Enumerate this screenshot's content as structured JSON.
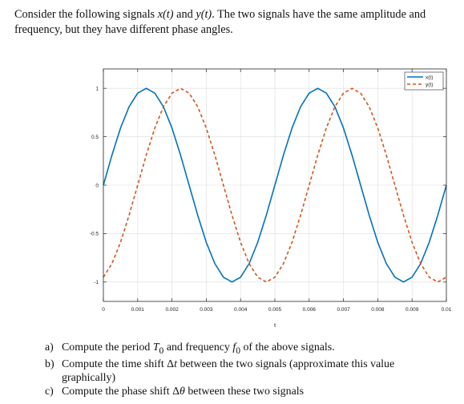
{
  "intro": {
    "part1": "Consider the following signals ",
    "x_sym": "x(t)",
    "part2": " and ",
    "y_sym": "y(t)",
    "part3": ". The two signals have the same amplitude and frequency, but they have different phase angles."
  },
  "chart_data": {
    "type": "line",
    "xlabel": "t",
    "ylabel": "",
    "xlim": [
      0,
      0.01
    ],
    "ylim": [
      -1.2,
      1.2
    ],
    "grid": true,
    "legend_position": "top-right",
    "x_ticks": [
      0,
      0.001,
      0.002,
      0.003,
      0.004,
      0.005,
      0.006,
      0.007,
      0.008,
      0.009,
      0.01
    ],
    "x_tick_labels": [
      "0",
      "0.001",
      "0.002",
      "0.003",
      "0.004",
      "0.005",
      "0.006",
      "0.007",
      "0.008",
      "0.009",
      "0.01"
    ],
    "y_ticks": [
      1,
      0.5,
      0,
      -0.5,
      -1
    ],
    "y_tick_labels": [
      "1",
      "0.5",
      "0",
      "-0.5",
      "-1"
    ],
    "series": [
      {
        "name": "x(t)",
        "color": "#0072BD",
        "style": "solid",
        "x": [
          0,
          0.00025,
          0.0005,
          0.00075,
          0.001,
          0.00125,
          0.0015,
          0.00175,
          0.002,
          0.00225,
          0.0025,
          0.00275,
          0.003,
          0.00325,
          0.0035,
          0.00375,
          0.004,
          0.00425,
          0.0045,
          0.00475,
          0.005,
          0.00525,
          0.0055,
          0.00575,
          0.006,
          0.00625,
          0.0065,
          0.00675,
          0.007,
          0.00725,
          0.0075,
          0.00775,
          0.008,
          0.00825,
          0.0085,
          0.00875,
          0.009,
          0.00925,
          0.0095,
          0.00975,
          0.01
        ],
        "y": [
          0.0,
          0.31,
          0.59,
          0.81,
          0.95,
          1.0,
          0.95,
          0.81,
          0.59,
          0.31,
          0.0,
          -0.31,
          -0.59,
          -0.81,
          -0.95,
          -1.0,
          -0.95,
          -0.81,
          -0.59,
          -0.31,
          0.0,
          0.31,
          0.59,
          0.81,
          0.95,
          1.0,
          0.95,
          0.81,
          0.59,
          0.31,
          0.0,
          -0.31,
          -0.59,
          -0.81,
          -0.95,
          -1.0,
          -0.95,
          -0.81,
          -0.59,
          -0.31,
          0.0
        ]
      },
      {
        "name": "y(t)",
        "color": "#D95319",
        "style": "dashed",
        "x": [
          0,
          0.00025,
          0.0005,
          0.00075,
          0.001,
          0.00125,
          0.0015,
          0.00175,
          0.002,
          0.00225,
          0.0025,
          0.00275,
          0.003,
          0.00325,
          0.0035,
          0.00375,
          0.004,
          0.00425,
          0.0045,
          0.00475,
          0.005,
          0.00525,
          0.0055,
          0.00575,
          0.006,
          0.00625,
          0.0065,
          0.00675,
          0.007,
          0.00725,
          0.0075,
          0.00775,
          0.008,
          0.00825,
          0.0085,
          0.00875,
          0.009,
          0.00925,
          0.0095,
          0.00975,
          0.01
        ],
        "y": [
          -0.95,
          -0.81,
          -0.59,
          -0.31,
          0.0,
          0.31,
          0.59,
          0.81,
          0.95,
          1.0,
          0.95,
          0.81,
          0.59,
          0.31,
          0.0,
          -0.31,
          -0.59,
          -0.81,
          -0.95,
          -1.0,
          -0.95,
          -0.81,
          -0.59,
          -0.31,
          0.0,
          0.31,
          0.59,
          0.81,
          0.95,
          1.0,
          0.95,
          0.81,
          0.59,
          0.31,
          0.0,
          -0.31,
          -0.59,
          -0.81,
          -0.95,
          -1.0,
          -0.95
        ]
      }
    ]
  },
  "questions": [
    {
      "label": "a)",
      "parts": [
        {
          "t": "Compute the period "
        },
        {
          "t": "T",
          "i": true
        },
        {
          "t": "0",
          "sub": true
        },
        {
          "t": " and frequency "
        },
        {
          "t": "f",
          "i": true
        },
        {
          "t": "0",
          "sub": true
        },
        {
          "t": " of the above signals."
        }
      ]
    },
    {
      "label": "b)",
      "parts": [
        {
          "t": "Compute the time shift Δ"
        },
        {
          "t": "t",
          "i": true
        },
        {
          "t": " between the two signals (approximate this value graphically)"
        }
      ]
    },
    {
      "label": "c)",
      "parts": [
        {
          "t": "Compute the phase shift Δ"
        },
        {
          "t": "θ",
          "i": true
        },
        {
          "t": " between these two signals"
        }
      ]
    }
  ]
}
